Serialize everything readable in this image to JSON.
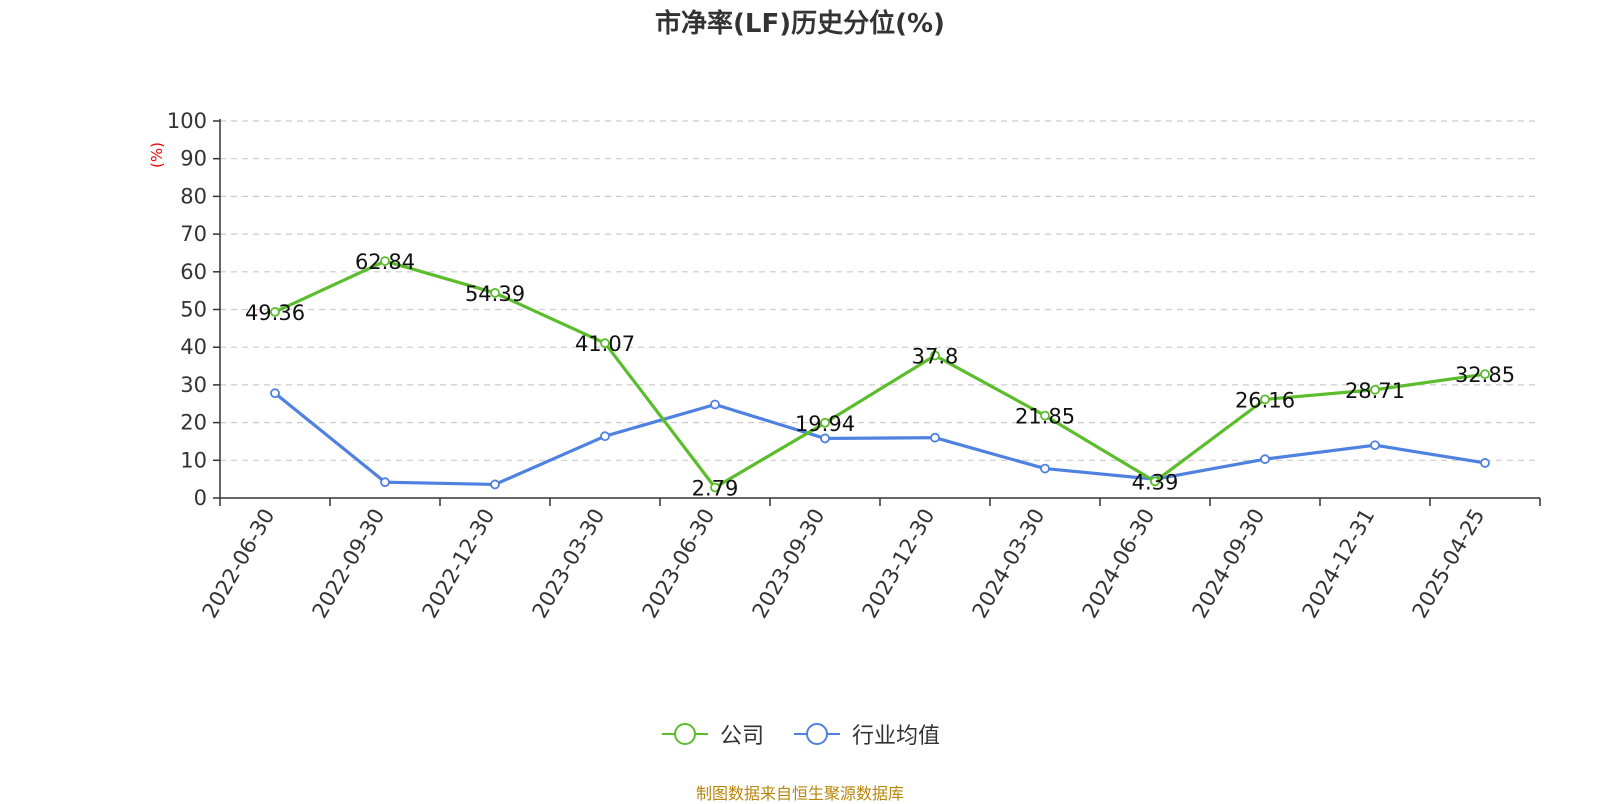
{
  "title": "市净率(LF)历史分位(%)",
  "source": "制图数据来自恒生聚源数据库",
  "colors": {
    "company": "#5bbd2b",
    "industry": "#4f81e0",
    "unit": "#ee0000",
    "grid": "#cccccc",
    "axis": "#333333"
  },
  "chart_data": {
    "type": "line",
    "title": "市净率(LF)历史分位(%)",
    "ylabel": "(%)",
    "ylim": [
      0,
      100
    ],
    "yticks": [
      0,
      10,
      20,
      30,
      40,
      50,
      60,
      70,
      80,
      90,
      100
    ],
    "grid": true,
    "legend_position": "bottom-center",
    "categories": [
      "2022-06-30",
      "2022-09-30",
      "2022-12-30",
      "2023-03-30",
      "2023-06-30",
      "2023-09-30",
      "2023-12-30",
      "2024-03-30",
      "2024-06-30",
      "2024-09-30",
      "2024-12-31",
      "2025-04-25"
    ],
    "series": [
      {
        "name": "公司",
        "color": "#5bbd2b",
        "values": [
          49.36,
          62.84,
          54.39,
          41.07,
          2.79,
          19.94,
          37.8,
          21.85,
          4.39,
          26.16,
          28.71,
          32.85
        ],
        "labels": [
          "49.36",
          "62.84",
          "54.39",
          "41.07",
          "2.79",
          "19.94",
          "37.8",
          "21.85",
          "4.39",
          "26.16",
          "28.71",
          "32.85"
        ]
      },
      {
        "name": "行业均值",
        "color": "#4f81e0",
        "values": [
          27.8,
          4.2,
          3.6,
          16.4,
          24.8,
          15.8,
          16.0,
          7.8,
          5.0,
          10.3,
          14.0,
          9.3
        ]
      }
    ]
  }
}
